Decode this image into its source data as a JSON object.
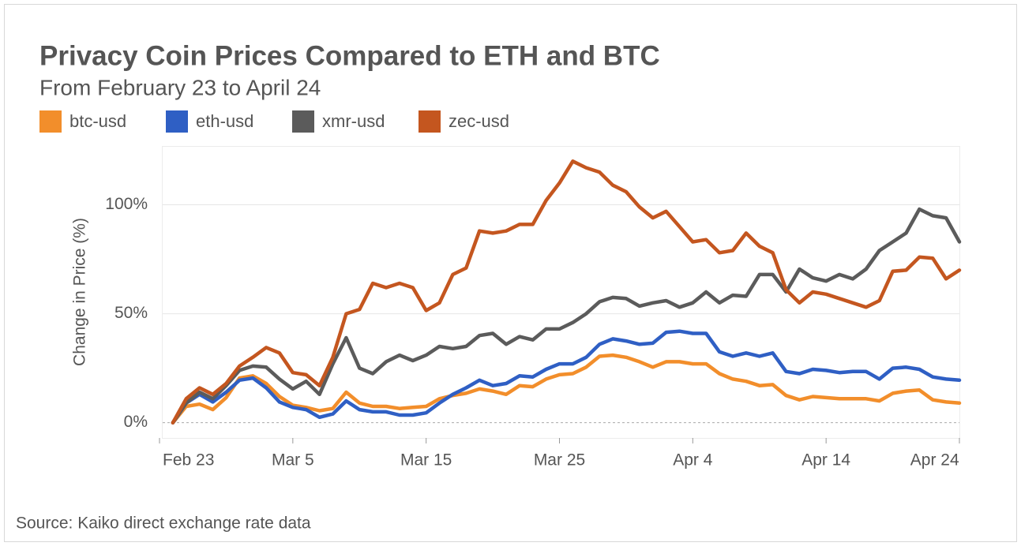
{
  "chart_data": {
    "type": "line",
    "title": "Privacy Coin Prices Compared to ETH and BTC",
    "subtitle": "From February 23 to April 24",
    "y_label": "Change in Price (%)",
    "source": "Source: Kaiko direct exchange rate data",
    "x": [
      1,
      2,
      3,
      4,
      5,
      6,
      7,
      8,
      9,
      10,
      11,
      12,
      13,
      14,
      15,
      16,
      17,
      18,
      19,
      20,
      21,
      22,
      23,
      24,
      25,
      26,
      27,
      28,
      29,
      30,
      31,
      32,
      33,
      34,
      35,
      36,
      37,
      38,
      39,
      40,
      41,
      42,
      43,
      44,
      45,
      46,
      47,
      48,
      49,
      50,
      51,
      52,
      53,
      54,
      55,
      56,
      57,
      58,
      59,
      60
    ],
    "xlim": [
      0,
      60
    ],
    "xticks": [
      {
        "value": 0,
        "label": "Feb 23"
      },
      {
        "value": 10,
        "label": "Mar 5"
      },
      {
        "value": 20,
        "label": "Mar 15"
      },
      {
        "value": 30,
        "label": "Mar 25"
      },
      {
        "value": 40,
        "label": "Apr 4"
      },
      {
        "value": 50,
        "label": "Apr 14"
      },
      {
        "value": 60,
        "label": "Apr 24"
      }
    ],
    "ylim": [
      -7,
      127
    ],
    "yticks": [
      {
        "value": 0,
        "label": "0%"
      },
      {
        "value": 50,
        "label": "50%"
      },
      {
        "value": 100,
        "label": "100%"
      }
    ],
    "grid": true,
    "series": [
      {
        "name": "btc-usd",
        "color": "#f28e2b",
        "values": [
          0,
          7.5,
          8.5,
          6,
          11.5,
          20.5,
          21.5,
          18,
          12,
          8,
          7,
          5.5,
          6.5,
          14,
          9,
          7.5,
          7.5,
          6.5,
          7,
          7.5,
          11,
          12.5,
          13.5,
          15.5,
          14.5,
          13,
          17,
          16.5,
          20,
          22,
          22.5,
          25.5,
          30.5,
          31,
          30,
          28,
          25.5,
          28,
          28,
          27,
          27,
          22.5,
          20,
          19,
          17,
          17.5,
          12.5,
          10.5,
          12,
          11.5,
          11,
          11,
          11,
          10,
          13.5,
          14.5,
          15,
          10.5,
          9.5,
          9
        ]
      },
      {
        "name": "eth-usd",
        "color": "#2f5fc4",
        "values": [
          0,
          9,
          13,
          9.5,
          14,
          19.5,
          20.5,
          16,
          9.5,
          7,
          6,
          2.5,
          4,
          10,
          6,
          5,
          5,
          3.5,
          3.5,
          4.5,
          9,
          13,
          16,
          19.5,
          17,
          18,
          21.5,
          21,
          24.5,
          27,
          27,
          30,
          36,
          38.5,
          37.5,
          36,
          36.5,
          41.5,
          42,
          41,
          41,
          32.5,
          30.5,
          32,
          30.5,
          32,
          23.5,
          22.5,
          24.5,
          24,
          23,
          23.5,
          23.5,
          20,
          25,
          25.5,
          24.5,
          21,
          20,
          19.5
        ]
      },
      {
        "name": "xmr-usd",
        "color": "#5b5b5b",
        "values": [
          0,
          9,
          14,
          11,
          17,
          24,
          26,
          25.5,
          20,
          15.5,
          19,
          13,
          27,
          39,
          25,
          22.5,
          28,
          31,
          28.5,
          31,
          35,
          34,
          35,
          40,
          41,
          36,
          39.5,
          38,
          43,
          43,
          46,
          50,
          55.5,
          57.5,
          57,
          53.5,
          55,
          56,
          53,
          55,
          60,
          55,
          58.5,
          58,
          68,
          68,
          60,
          70.5,
          66.5,
          65,
          68,
          66,
          70.5,
          79,
          83,
          87,
          98,
          95,
          94,
          83
        ]
      },
      {
        "name": "zec-usd",
        "color": "#c4561f",
        "values": [
          0,
          11,
          16,
          13,
          18,
          26,
          30,
          34.5,
          32,
          23,
          22,
          17,
          30,
          50,
          52,
          64,
          62,
          64,
          62,
          51.5,
          55,
          68,
          71,
          88,
          87,
          88,
          91,
          91,
          102,
          110,
          120,
          117,
          115,
          109,
          106,
          99,
          94,
          97,
          90,
          83,
          84,
          78,
          79,
          87,
          81,
          78,
          61,
          55,
          60,
          59,
          57,
          55,
          53,
          56,
          69.5,
          70,
          76,
          75.5,
          66,
          70
        ]
      }
    ]
  }
}
